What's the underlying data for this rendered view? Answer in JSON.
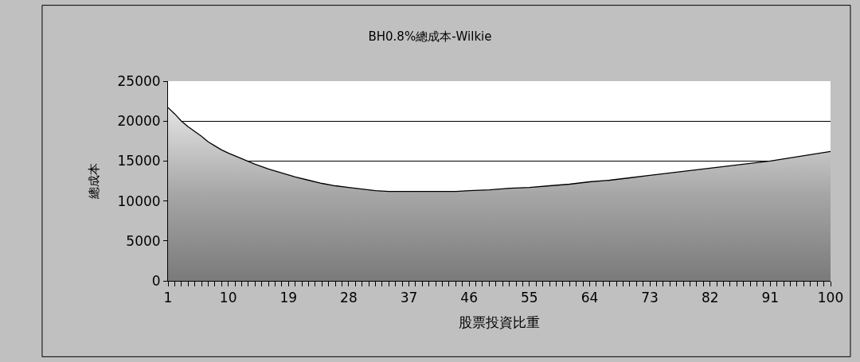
{
  "chart_data": {
    "type": "area",
    "title": "BH0.8%總成本-Wilkie",
    "xlabel": "股票投資比重",
    "ylabel": "總成本",
    "series": [
      {
        "color": "#a6a6a6",
        "x": [
          1,
          2,
          3,
          4,
          5,
          6,
          7,
          8,
          9,
          10,
          12,
          14,
          16,
          18,
          20,
          22,
          24,
          26,
          28,
          30,
          32,
          34,
          38,
          42,
          44,
          46,
          49,
          52,
          55,
          58,
          61,
          64,
          67,
          70,
          73,
          76,
          79,
          82,
          85,
          88,
          91,
          94,
          97,
          100
        ],
        "values": [
          21700,
          20900,
          20000,
          19300,
          18700,
          18100,
          17400,
          16900,
          16400,
          16000,
          15300,
          14600,
          14000,
          13500,
          13000,
          12600,
          12200,
          11900,
          11700,
          11500,
          11300,
          11200,
          11200,
          11200,
          11200,
          11300,
          11400,
          11600,
          11700,
          11900,
          12100,
          12400,
          12600,
          12900,
          13200,
          13500,
          13800,
          14100,
          14400,
          14700,
          15000,
          15400,
          15800,
          16200
        ]
      }
    ],
    "xlim": [
      1,
      100
    ],
    "xticks": [
      1,
      10,
      19,
      28,
      37,
      46,
      55,
      64,
      73,
      82,
      91,
      100
    ],
    "ylim": [
      0,
      25000
    ],
    "yticks": [
      0,
      5000,
      10000,
      15000,
      20000,
      25000
    ],
    "grid": "y"
  }
}
